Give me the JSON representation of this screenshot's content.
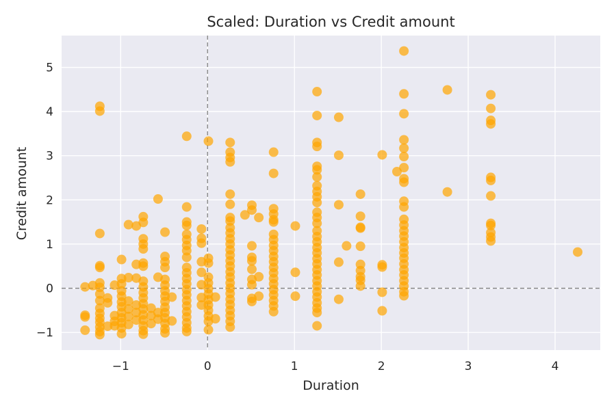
{
  "chart_data": {
    "type": "scatter",
    "title": "Scaled: Duration vs Credit amount",
    "xlabel": "Duration",
    "ylabel": "Credit amount",
    "xlim": [
      -1.68,
      4.52
    ],
    "ylim": [
      -1.4,
      5.72
    ],
    "xticks": [
      -1,
      0,
      1,
      2,
      3,
      4
    ],
    "yticks": [
      -1,
      0,
      1,
      2,
      3,
      4,
      5
    ],
    "xtick_labels": [
      "−1",
      "0",
      "1",
      "2",
      "3",
      "4"
    ],
    "ytick_labels": [
      "−1",
      "0",
      "1",
      "2",
      "3",
      "4",
      "5"
    ],
    "grid": true,
    "reference_lines": [
      {
        "orientation": "vertical",
        "value": 0,
        "style": "dashed"
      },
      {
        "orientation": "horizontal",
        "value": 0,
        "style": "dashed"
      }
    ],
    "colors": {
      "point": "#ffa500",
      "point_opacity": 0.7,
      "plot_background": "#eaeaf2",
      "grid": "#ffffff",
      "reference_line": "#808080"
    },
    "points": [
      {
        "x": -1.41,
        "y": 0.03
      },
      {
        "x": -1.41,
        "y": -0.61
      },
      {
        "x": -1.41,
        "y": -0.65
      },
      {
        "x": -1.41,
        "y": -0.95
      },
      {
        "x": -1.32,
        "y": 0.06
      },
      {
        "x": -1.24,
        "y": 4.12
      },
      {
        "x": -1.24,
        "y": 4.01
      },
      {
        "x": -1.24,
        "y": 1.24
      },
      {
        "x": -1.24,
        "y": 0.51
      },
      {
        "x": -1.24,
        "y": 0.47
      },
      {
        "x": -1.24,
        "y": 0.12
      },
      {
        "x": -1.24,
        "y": 0.02
      },
      {
        "x": -1.24,
        "y": -0.13
      },
      {
        "x": -1.24,
        "y": -0.28
      },
      {
        "x": -1.24,
        "y": -0.45
      },
      {
        "x": -1.24,
        "y": -0.57
      },
      {
        "x": -1.24,
        "y": -0.68
      },
      {
        "x": -1.24,
        "y": -0.77
      },
      {
        "x": -1.24,
        "y": -0.88
      },
      {
        "x": -1.24,
        "y": -0.98
      },
      {
        "x": -1.24,
        "y": -1.05
      },
      {
        "x": -1.15,
        "y": -0.22
      },
      {
        "x": -1.15,
        "y": -0.33
      },
      {
        "x": -1.15,
        "y": -0.86
      },
      {
        "x": -1.07,
        "y": 0.07
      },
      {
        "x": -1.07,
        "y": -0.62
      },
      {
        "x": -1.07,
        "y": -0.75
      },
      {
        "x": -1.07,
        "y": -0.85
      },
      {
        "x": -0.99,
        "y": 0.65
      },
      {
        "x": -0.99,
        "y": 0.22
      },
      {
        "x": -0.99,
        "y": 0.1
      },
      {
        "x": -0.99,
        "y": -0.06
      },
      {
        "x": -0.99,
        "y": -0.18
      },
      {
        "x": -0.99,
        "y": -0.31
      },
      {
        "x": -0.99,
        "y": -0.42
      },
      {
        "x": -0.99,
        "y": -0.55
      },
      {
        "x": -0.99,
        "y": -0.67
      },
      {
        "x": -0.99,
        "y": -0.78
      },
      {
        "x": -0.99,
        "y": -0.9
      },
      {
        "x": -0.99,
        "y": -1.03
      },
      {
        "x": -0.91,
        "y": 1.44
      },
      {
        "x": -0.91,
        "y": 0.24
      },
      {
        "x": -0.91,
        "y": -0.29
      },
      {
        "x": -0.91,
        "y": -0.47
      },
      {
        "x": -0.91,
        "y": -0.64
      },
      {
        "x": -0.91,
        "y": -0.82
      },
      {
        "x": -0.82,
        "y": 1.41
      },
      {
        "x": -0.82,
        "y": 0.54
      },
      {
        "x": -0.82,
        "y": 0.23
      },
      {
        "x": -0.82,
        "y": -0.38
      },
      {
        "x": -0.82,
        "y": -0.55
      },
      {
        "x": -0.82,
        "y": -0.72
      },
      {
        "x": -0.74,
        "y": 1.62
      },
      {
        "x": -0.74,
        "y": 1.49
      },
      {
        "x": -0.74,
        "y": 1.12
      },
      {
        "x": -0.74,
        "y": 1.0
      },
      {
        "x": -0.74,
        "y": 0.89
      },
      {
        "x": -0.74,
        "y": 0.57
      },
      {
        "x": -0.74,
        "y": 0.5
      },
      {
        "x": -0.74,
        "y": 0.16
      },
      {
        "x": -0.74,
        "y": 0.03
      },
      {
        "x": -0.74,
        "y": -0.1
      },
      {
        "x": -0.74,
        "y": -0.22
      },
      {
        "x": -0.74,
        "y": -0.35
      },
      {
        "x": -0.74,
        "y": -0.47
      },
      {
        "x": -0.74,
        "y": -0.6
      },
      {
        "x": -0.74,
        "y": -0.72
      },
      {
        "x": -0.74,
        "y": -0.85
      },
      {
        "x": -0.74,
        "y": -0.96
      },
      {
        "x": -0.74,
        "y": -1.04
      },
      {
        "x": -0.65,
        "y": -0.45
      },
      {
        "x": -0.65,
        "y": -0.62
      },
      {
        "x": -0.65,
        "y": -0.8
      },
      {
        "x": -0.57,
        "y": 2.02
      },
      {
        "x": -0.57,
        "y": 0.25
      },
      {
        "x": -0.57,
        "y": -0.55
      },
      {
        "x": -0.57,
        "y": -0.7
      },
      {
        "x": -0.49,
        "y": 1.27
      },
      {
        "x": -0.49,
        "y": 0.72
      },
      {
        "x": -0.49,
        "y": 0.6
      },
      {
        "x": -0.49,
        "y": 0.47
      },
      {
        "x": -0.49,
        "y": 0.2
      },
      {
        "x": -0.49,
        "y": 0.07
      },
      {
        "x": -0.49,
        "y": -0.06
      },
      {
        "x": -0.49,
        "y": -0.18
      },
      {
        "x": -0.49,
        "y": -0.3
      },
      {
        "x": -0.49,
        "y": -0.43
      },
      {
        "x": -0.49,
        "y": -0.55
      },
      {
        "x": -0.49,
        "y": -0.67
      },
      {
        "x": -0.49,
        "y": -0.8
      },
      {
        "x": -0.49,
        "y": -0.92
      },
      {
        "x": -0.49,
        "y": -1.01
      },
      {
        "x": -0.41,
        "y": -0.2
      },
      {
        "x": -0.41,
        "y": -0.74
      },
      {
        "x": -0.24,
        "y": 3.44
      },
      {
        "x": -0.24,
        "y": 1.84
      },
      {
        "x": -0.24,
        "y": 1.5
      },
      {
        "x": -0.24,
        "y": 1.42
      },
      {
        "x": -0.24,
        "y": 1.22
      },
      {
        "x": -0.24,
        "y": 1.1
      },
      {
        "x": -0.24,
        "y": 0.97
      },
      {
        "x": -0.24,
        "y": 0.85
      },
      {
        "x": -0.24,
        "y": 0.7
      },
      {
        "x": -0.24,
        "y": 0.47
      },
      {
        "x": -0.24,
        "y": 0.35
      },
      {
        "x": -0.24,
        "y": 0.22
      },
      {
        "x": -0.24,
        "y": 0.1
      },
      {
        "x": -0.24,
        "y": -0.03
      },
      {
        "x": -0.24,
        "y": -0.15
      },
      {
        "x": -0.24,
        "y": -0.28
      },
      {
        "x": -0.24,
        "y": -0.4
      },
      {
        "x": -0.24,
        "y": -0.53
      },
      {
        "x": -0.24,
        "y": -0.65
      },
      {
        "x": -0.24,
        "y": -0.78
      },
      {
        "x": -0.24,
        "y": -0.9
      },
      {
        "x": -0.24,
        "y": -0.98
      },
      {
        "x": -0.07,
        "y": 1.34
      },
      {
        "x": -0.07,
        "y": 1.13
      },
      {
        "x": -0.07,
        "y": 1.02
      },
      {
        "x": -0.07,
        "y": 0.6
      },
      {
        "x": -0.07,
        "y": 0.36
      },
      {
        "x": -0.07,
        "y": 0.08
      },
      {
        "x": -0.07,
        "y": -0.21
      },
      {
        "x": -0.07,
        "y": -0.38
      },
      {
        "x": 0.01,
        "y": 3.33
      },
      {
        "x": 0.01,
        "y": 0.68
      },
      {
        "x": 0.01,
        "y": 0.57
      },
      {
        "x": 0.01,
        "y": 0.25
      },
      {
        "x": 0.01,
        "y": 0.12
      },
      {
        "x": 0.01,
        "y": -0.01
      },
      {
        "x": 0.01,
        "y": -0.13
      },
      {
        "x": 0.01,
        "y": -0.26
      },
      {
        "x": 0.01,
        "y": -0.38
      },
      {
        "x": 0.01,
        "y": -0.5
      },
      {
        "x": 0.01,
        "y": -0.63
      },
      {
        "x": 0.01,
        "y": -0.75
      },
      {
        "x": 0.01,
        "y": -0.94
      },
      {
        "x": 0.09,
        "y": -0.2
      },
      {
        "x": 0.09,
        "y": -0.69
      },
      {
        "x": 0.26,
        "y": 3.3
      },
      {
        "x": 0.26,
        "y": 3.08
      },
      {
        "x": 0.26,
        "y": 2.96
      },
      {
        "x": 0.26,
        "y": 2.86
      },
      {
        "x": 0.26,
        "y": 2.13
      },
      {
        "x": 0.26,
        "y": 1.9
      },
      {
        "x": 0.26,
        "y": 1.6
      },
      {
        "x": 0.26,
        "y": 1.52
      },
      {
        "x": 0.26,
        "y": 1.37
      },
      {
        "x": 0.26,
        "y": 1.25
      },
      {
        "x": 0.26,
        "y": 1.12
      },
      {
        "x": 0.26,
        "y": 1.0
      },
      {
        "x": 0.26,
        "y": 0.87
      },
      {
        "x": 0.26,
        "y": 0.75
      },
      {
        "x": 0.26,
        "y": 0.62
      },
      {
        "x": 0.26,
        "y": 0.5
      },
      {
        "x": 0.26,
        "y": 0.37
      },
      {
        "x": 0.26,
        "y": 0.25
      },
      {
        "x": 0.26,
        "y": 0.12
      },
      {
        "x": 0.26,
        "y": 0.0
      },
      {
        "x": 0.26,
        "y": -0.12
      },
      {
        "x": 0.26,
        "y": -0.25
      },
      {
        "x": 0.26,
        "y": -0.37
      },
      {
        "x": 0.26,
        "y": -0.5
      },
      {
        "x": 0.26,
        "y": -0.62
      },
      {
        "x": 0.26,
        "y": -0.75
      },
      {
        "x": 0.26,
        "y": -0.88
      },
      {
        "x": 0.43,
        "y": 1.66
      },
      {
        "x": 0.51,
        "y": 1.88
      },
      {
        "x": 0.51,
        "y": 1.77
      },
      {
        "x": 0.51,
        "y": 0.96
      },
      {
        "x": 0.51,
        "y": 0.7
      },
      {
        "x": 0.51,
        "y": 0.62
      },
      {
        "x": 0.51,
        "y": 0.43
      },
      {
        "x": 0.51,
        "y": 0.2
      },
      {
        "x": 0.51,
        "y": 0.08
      },
      {
        "x": 0.51,
        "y": -0.23
      },
      {
        "x": 0.51,
        "y": -0.3
      },
      {
        "x": 0.59,
        "y": 1.6
      },
      {
        "x": 0.59,
        "y": 0.26
      },
      {
        "x": 0.59,
        "y": -0.18
      },
      {
        "x": 0.76,
        "y": 3.08
      },
      {
        "x": 0.76,
        "y": 2.6
      },
      {
        "x": 0.76,
        "y": 1.8
      },
      {
        "x": 0.76,
        "y": 1.68
      },
      {
        "x": 0.76,
        "y": 1.55
      },
      {
        "x": 0.76,
        "y": 1.5
      },
      {
        "x": 0.76,
        "y": 1.22
      },
      {
        "x": 0.76,
        "y": 1.1
      },
      {
        "x": 0.76,
        "y": 0.97
      },
      {
        "x": 0.76,
        "y": 0.85
      },
      {
        "x": 0.76,
        "y": 0.72
      },
      {
        "x": 0.76,
        "y": 0.6
      },
      {
        "x": 0.76,
        "y": 0.47
      },
      {
        "x": 0.76,
        "y": 0.35
      },
      {
        "x": 0.76,
        "y": 0.22
      },
      {
        "x": 0.76,
        "y": 0.1
      },
      {
        "x": 0.76,
        "y": -0.03
      },
      {
        "x": 0.76,
        "y": -0.15
      },
      {
        "x": 0.76,
        "y": -0.28
      },
      {
        "x": 0.76,
        "y": -0.4
      },
      {
        "x": 0.76,
        "y": -0.53
      },
      {
        "x": 1.01,
        "y": 1.41
      },
      {
        "x": 1.01,
        "y": 0.36
      },
      {
        "x": 1.01,
        "y": -0.18
      },
      {
        "x": 1.26,
        "y": 4.45
      },
      {
        "x": 1.26,
        "y": 3.91
      },
      {
        "x": 1.26,
        "y": 3.3
      },
      {
        "x": 1.26,
        "y": 3.21
      },
      {
        "x": 1.26,
        "y": 2.76
      },
      {
        "x": 1.26,
        "y": 2.68
      },
      {
        "x": 1.26,
        "y": 2.52
      },
      {
        "x": 1.26,
        "y": 2.32
      },
      {
        "x": 1.26,
        "y": 2.19
      },
      {
        "x": 1.26,
        "y": 2.07
      },
      {
        "x": 1.26,
        "y": 1.94
      },
      {
        "x": 1.26,
        "y": 1.72
      },
      {
        "x": 1.26,
        "y": 1.6
      },
      {
        "x": 1.26,
        "y": 1.47
      },
      {
        "x": 1.26,
        "y": 1.3
      },
      {
        "x": 1.26,
        "y": 1.17
      },
      {
        "x": 1.26,
        "y": 1.05
      },
      {
        "x": 1.26,
        "y": 0.92
      },
      {
        "x": 1.26,
        "y": 0.8
      },
      {
        "x": 1.26,
        "y": 0.67
      },
      {
        "x": 1.26,
        "y": 0.55
      },
      {
        "x": 1.26,
        "y": 0.42
      },
      {
        "x": 1.26,
        "y": 0.3
      },
      {
        "x": 1.26,
        "y": 0.17
      },
      {
        "x": 1.26,
        "y": 0.05
      },
      {
        "x": 1.26,
        "y": -0.08
      },
      {
        "x": 1.26,
        "y": -0.2
      },
      {
        "x": 1.26,
        "y": -0.33
      },
      {
        "x": 1.26,
        "y": -0.45
      },
      {
        "x": 1.26,
        "y": -0.55
      },
      {
        "x": 1.26,
        "y": -0.85
      },
      {
        "x": 1.51,
        "y": 3.87
      },
      {
        "x": 1.51,
        "y": 3.01
      },
      {
        "x": 1.51,
        "y": 1.89
      },
      {
        "x": 1.51,
        "y": 0.59
      },
      {
        "x": 1.51,
        "y": -0.25
      },
      {
        "x": 1.6,
        "y": 0.96
      },
      {
        "x": 1.76,
        "y": 2.13
      },
      {
        "x": 1.76,
        "y": 1.63
      },
      {
        "x": 1.76,
        "y": 1.38
      },
      {
        "x": 1.76,
        "y": 1.36
      },
      {
        "x": 1.76,
        "y": 0.95
      },
      {
        "x": 1.76,
        "y": 0.54
      },
      {
        "x": 1.76,
        "y": 0.4
      },
      {
        "x": 1.76,
        "y": 0.26
      },
      {
        "x": 1.76,
        "y": 0.18
      },
      {
        "x": 1.76,
        "y": 0.05
      },
      {
        "x": 2.01,
        "y": 3.02
      },
      {
        "x": 2.01,
        "y": 0.53
      },
      {
        "x": 2.01,
        "y": 0.48
      },
      {
        "x": 2.01,
        "y": -0.09
      },
      {
        "x": 2.01,
        "y": -0.51
      },
      {
        "x": 2.18,
        "y": 2.64
      },
      {
        "x": 2.26,
        "y": 5.37
      },
      {
        "x": 2.26,
        "y": 4.4
      },
      {
        "x": 2.26,
        "y": 3.95
      },
      {
        "x": 2.26,
        "y": 3.36
      },
      {
        "x": 2.26,
        "y": 3.17
      },
      {
        "x": 2.26,
        "y": 2.98
      },
      {
        "x": 2.26,
        "y": 2.73
      },
      {
        "x": 2.26,
        "y": 2.48
      },
      {
        "x": 2.26,
        "y": 2.4
      },
      {
        "x": 2.26,
        "y": 1.97
      },
      {
        "x": 2.26,
        "y": 1.84
      },
      {
        "x": 2.26,
        "y": 1.56
      },
      {
        "x": 2.26,
        "y": 1.43
      },
      {
        "x": 2.26,
        "y": 1.3
      },
      {
        "x": 2.26,
        "y": 1.18
      },
      {
        "x": 2.26,
        "y": 1.05
      },
      {
        "x": 2.26,
        "y": 0.92
      },
      {
        "x": 2.26,
        "y": 0.8
      },
      {
        "x": 2.26,
        "y": 0.68
      },
      {
        "x": 2.26,
        "y": 0.55
      },
      {
        "x": 2.26,
        "y": 0.42
      },
      {
        "x": 2.26,
        "y": 0.3
      },
      {
        "x": 2.26,
        "y": 0.17
      },
      {
        "x": 2.26,
        "y": 0.05
      },
      {
        "x": 2.26,
        "y": -0.08
      },
      {
        "x": 2.26,
        "y": -0.17
      },
      {
        "x": 2.76,
        "y": 4.49
      },
      {
        "x": 2.76,
        "y": 2.18
      },
      {
        "x": 3.26,
        "y": 4.38
      },
      {
        "x": 3.26,
        "y": 4.07
      },
      {
        "x": 3.26,
        "y": 3.8
      },
      {
        "x": 3.26,
        "y": 3.72
      },
      {
        "x": 3.26,
        "y": 2.51
      },
      {
        "x": 3.26,
        "y": 2.44
      },
      {
        "x": 3.26,
        "y": 2.09
      },
      {
        "x": 3.26,
        "y": 1.47
      },
      {
        "x": 3.26,
        "y": 1.42
      },
      {
        "x": 3.26,
        "y": 1.26
      },
      {
        "x": 3.26,
        "y": 1.16
      },
      {
        "x": 3.26,
        "y": 1.07
      },
      {
        "x": 4.26,
        "y": 0.82
      }
    ]
  }
}
